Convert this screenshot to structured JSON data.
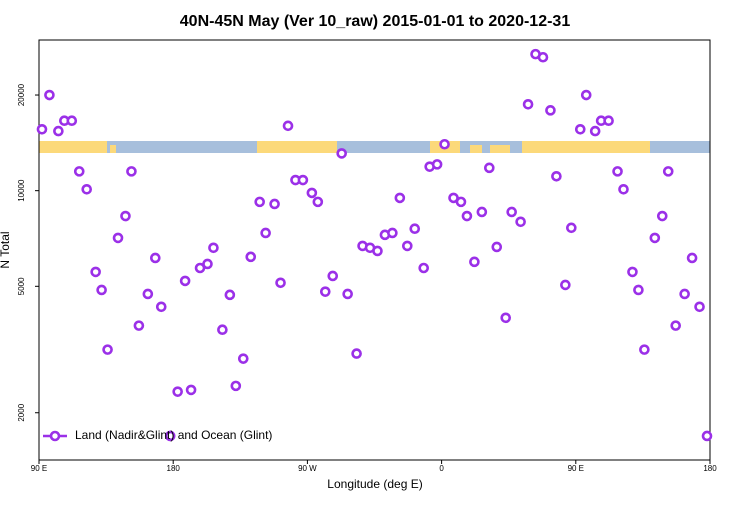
{
  "chart_data": {
    "type": "scatter",
    "title": "40N-45N May (Ver 10_raw)   2015-01-01 to 2020-12-31",
    "x_label": "Longitude (deg E)",
    "y_label": "N Total",
    "xlim": [
      90,
      540
    ],
    "ylim": [
      1420,
      29800
    ],
    "y_log": true,
    "legend": "bottom-left",
    "xticks": [
      {
        "value": 90,
        "label": "90 E"
      },
      {
        "value": 180,
        "label": "180"
      },
      {
        "value": 270,
        "label": "90 W"
      },
      {
        "value": 360,
        "label": "0"
      },
      {
        "value": 450,
        "label": "90 E"
      },
      {
        "value": 540,
        "label": "180"
      }
    ],
    "yticks": [
      2000,
      5000,
      10000,
      20000
    ],
    "x": [
      92,
      97,
      103,
      107,
      112,
      117,
      122,
      128,
      132,
      136,
      143,
      148,
      152,
      157,
      163,
      168,
      172,
      178,
      183,
      188,
      192,
      198,
      203,
      207,
      213,
      218,
      222,
      227,
      232,
      238,
      242,
      248,
      252,
      257,
      262,
      267,
      273,
      277,
      282,
      287,
      293,
      297,
      303,
      307,
      312,
      317,
      322,
      327,
      332,
      337,
      342,
      348,
      352,
      357,
      362,
      368,
      373,
      377,
      382,
      387,
      392,
      397,
      403,
      407,
      413,
      418,
      423,
      428,
      433,
      437,
      443,
      447,
      453,
      457,
      463,
      467,
      472,
      478,
      482,
      488,
      492,
      496,
      503,
      508,
      512,
      517,
      523,
      528,
      533,
      538
    ],
    "series": [
      {
        "name": "Land (Nadir&Glint) and Ocean (Glint)",
        "color": "#9b30e8",
        "values": [
          15600,
          20000,
          15400,
          16600,
          16600,
          11500,
          10100,
          5550,
          4870,
          3160,
          7100,
          8320,
          11500,
          3760,
          4730,
          6140,
          4310,
          1690,
          2330,
          5200,
          2360,
          5710,
          5880,
          6610,
          3650,
          4700,
          2430,
          2960,
          6190,
          9220,
          7360,
          9080,
          5130,
          16000,
          10800,
          10800,
          9840,
          9220,
          4810,
          5390,
          13100,
          4730,
          3070,
          6700,
          6610,
          6460,
          7260,
          7360,
          9490,
          6700,
          7590,
          5710,
          11900,
          12100,
          14000,
          9490,
          9220,
          8320,
          5970,
          8570,
          11800,
          6650,
          3980,
          8570,
          7980,
          18700,
          26900,
          26300,
          17900,
          11100,
          5050,
          7640,
          15600,
          20000,
          15400,
          16600,
          16600,
          11500,
          10100,
          5550,
          4870,
          3160,
          7100,
          8320,
          11500,
          3760,
          4730,
          6140,
          4310,
          1690
        ]
      }
    ]
  }
}
